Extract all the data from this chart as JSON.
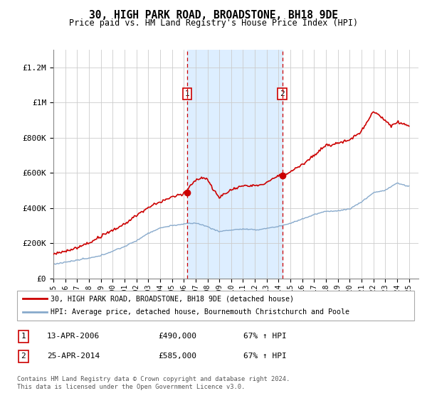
{
  "title": "30, HIGH PARK ROAD, BROADSTONE, BH18 9DE",
  "subtitle": "Price paid vs. HM Land Registry's House Price Index (HPI)",
  "legend_line1": "30, HIGH PARK ROAD, BROADSTONE, BH18 9DE (detached house)",
  "legend_line2": "HPI: Average price, detached house, Bournemouth Christchurch and Poole",
  "footnote": "Contains HM Land Registry data © Crown copyright and database right 2024.\nThis data is licensed under the Open Government Licence v3.0.",
  "transaction1_date": "13-APR-2006",
  "transaction1_price": 490000,
  "transaction1_hpi_txt": "67% ↑ HPI",
  "transaction2_date": "25-APR-2014",
  "transaction2_price": 585000,
  "transaction2_hpi_txt": "67% ↑ HPI",
  "property_color": "#cc0000",
  "hpi_color": "#88aacc",
  "shade_color": "#ddeeff",
  "ylim": [
    0,
    1300000
  ],
  "xlim_start": 1995.0,
  "xlim_end": 2025.8,
  "transaction1_year": 2006.28,
  "transaction2_year": 2014.31
}
